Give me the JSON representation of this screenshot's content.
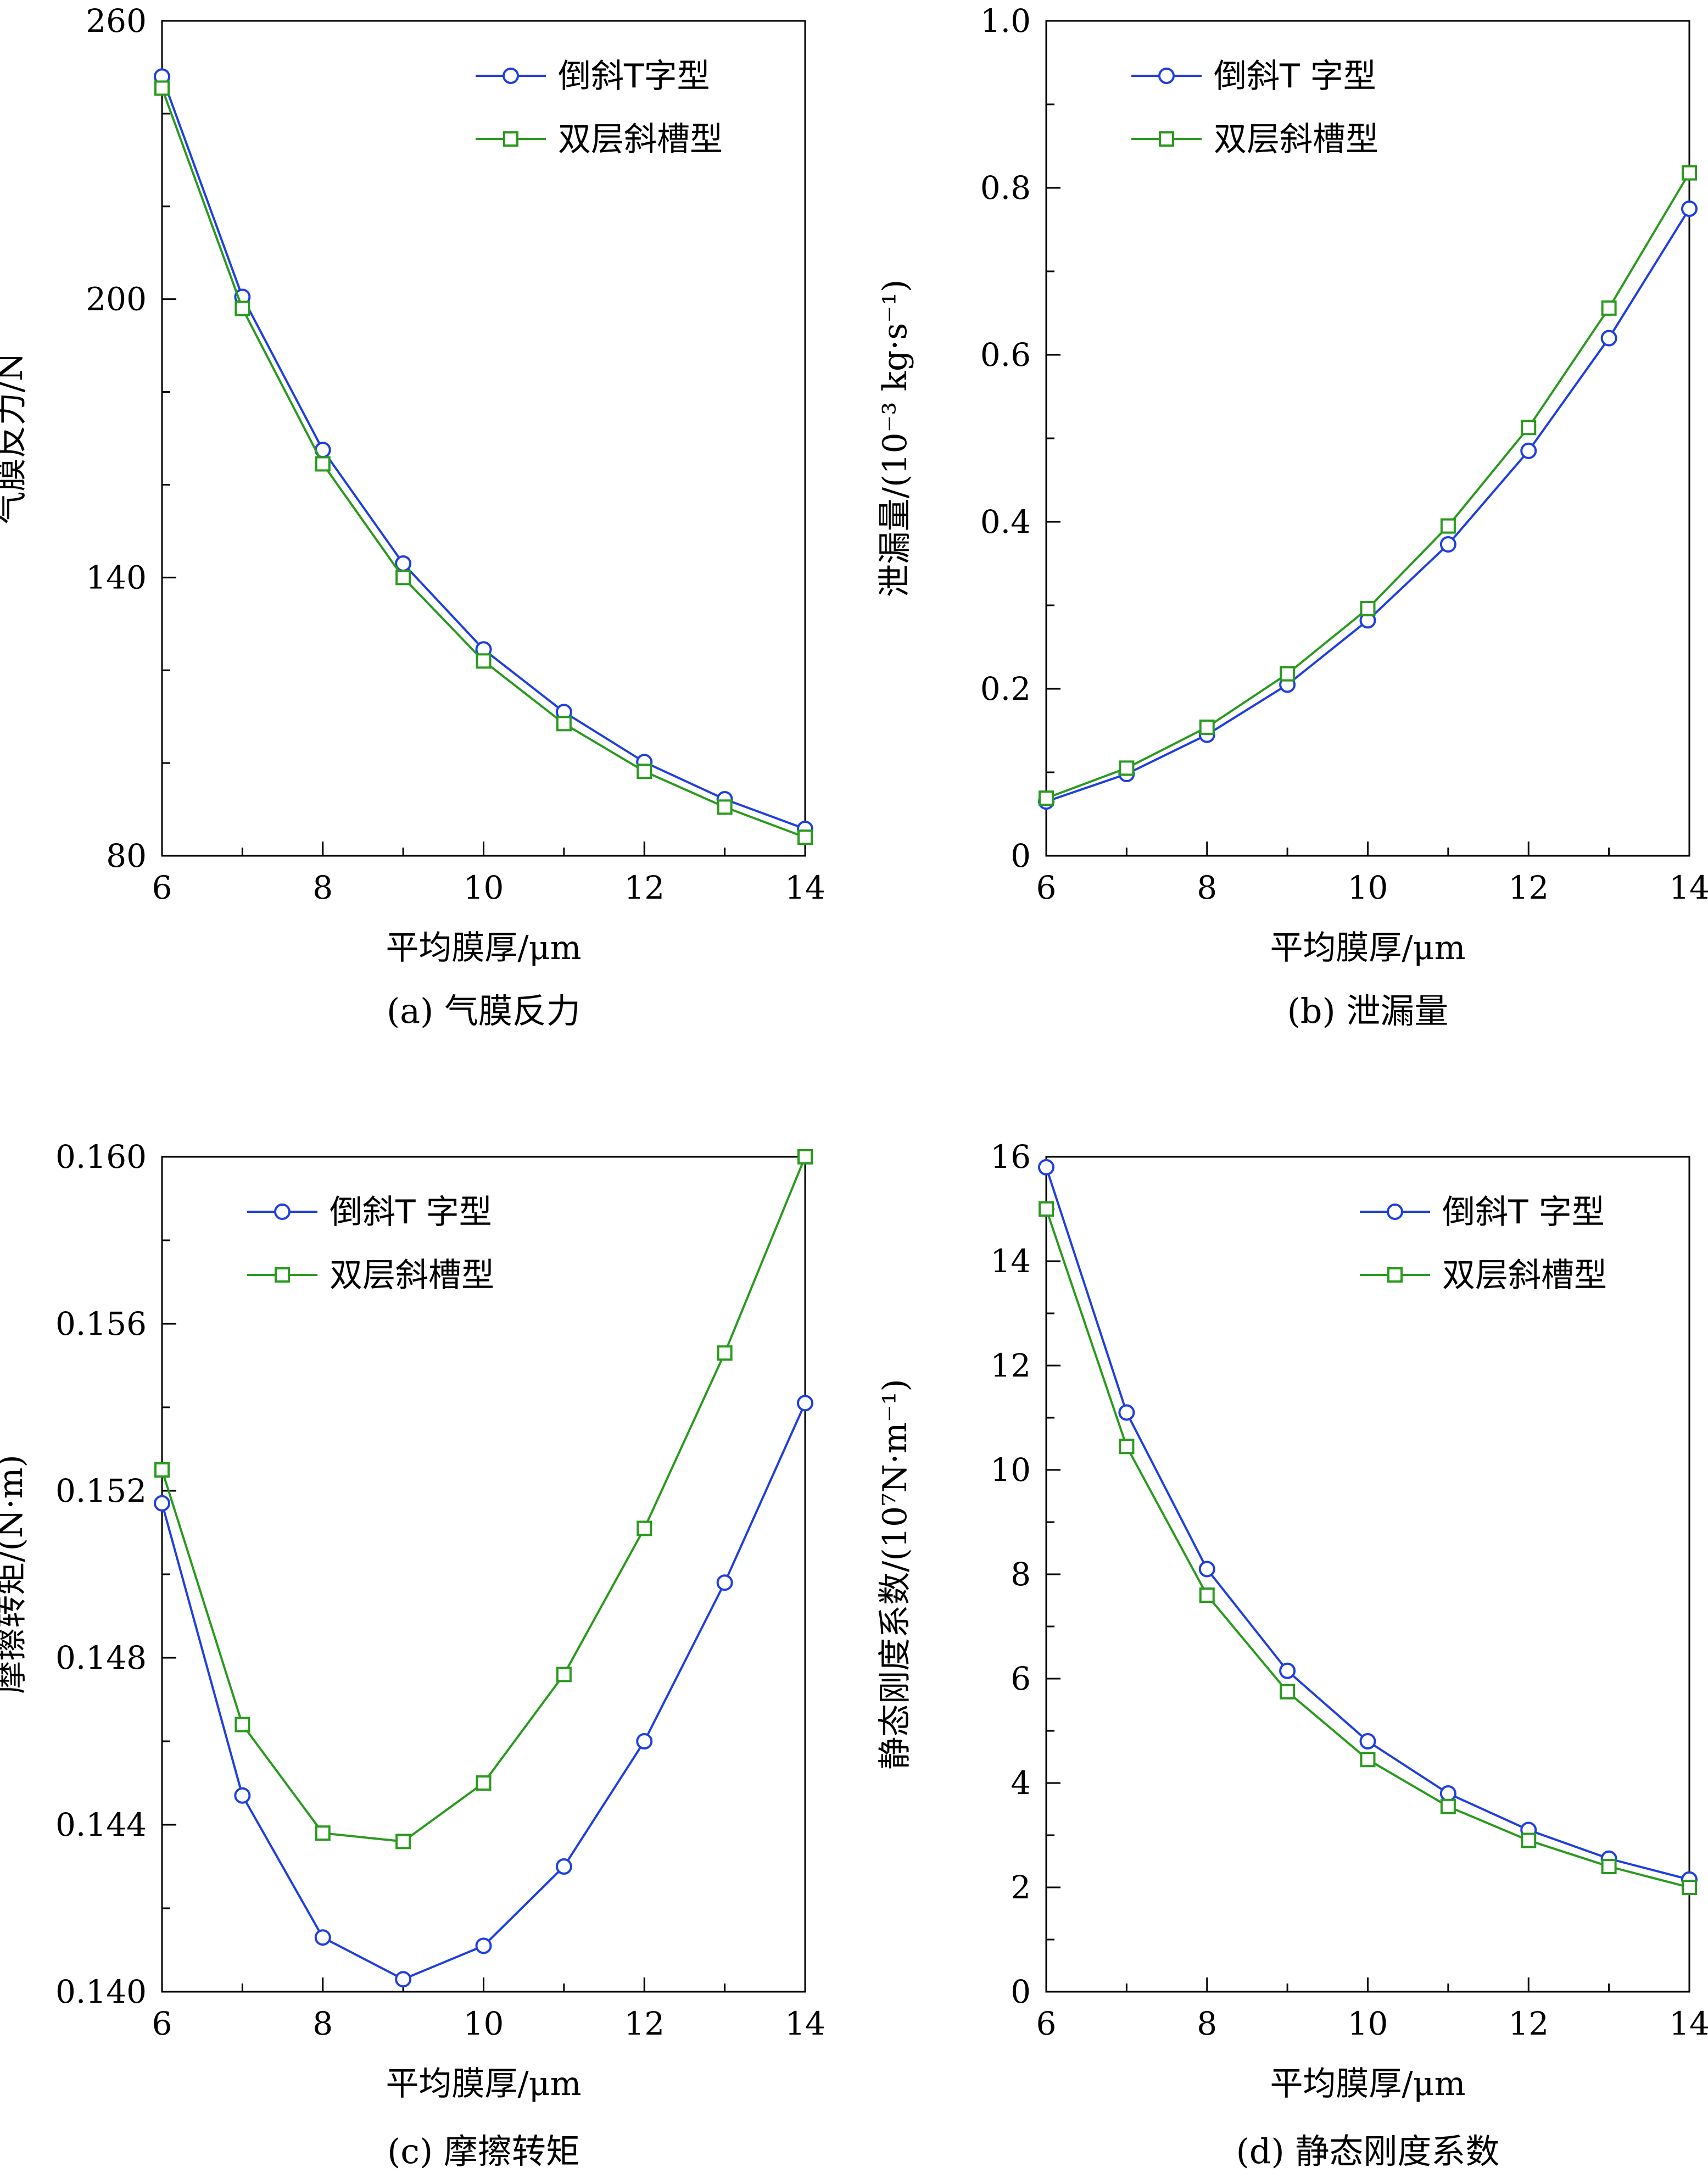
{
  "chart_data": [
    {
      "type": "line",
      "caption": "(a) 气膜反力",
      "xlabel": "平均膜厚/μm",
      "ylabel": "气膜反力/N",
      "xlim": [
        6,
        14
      ],
      "ylim": [
        80,
        260
      ],
      "xticks": [
        6,
        8,
        10,
        12,
        14
      ],
      "xtick_labels": [
        "6",
        "8",
        "10",
        "12",
        "14"
      ],
      "yticks": [
        80,
        140,
        200,
        260
      ],
      "ytick_labels": [
        "80",
        "140",
        "200",
        "260"
      ],
      "yminor": 20,
      "legend_position": "top-right",
      "x": [
        6,
        7,
        8,
        9,
        10,
        11,
        12,
        13,
        14
      ],
      "series": [
        {
          "name": "倒斜T字型",
          "marker": "circle",
          "color": "#1f3fe0",
          "values": [
            248,
            200.5,
            167.5,
            143,
            124.5,
            111,
            100.2,
            92.2,
            85.8
          ]
        },
        {
          "name": "双层斜槽型",
          "marker": "square",
          "color": "#2a9a1e",
          "values": [
            245.5,
            198,
            164.5,
            140,
            122,
            108.5,
            98.2,
            90.5,
            84
          ]
        }
      ]
    },
    {
      "type": "line",
      "caption": "(b) 泄漏量",
      "xlabel": "平均膜厚/μm",
      "ylabel": "泄漏量/(10⁻³ kg·s⁻¹)",
      "xlim": [
        6,
        14
      ],
      "ylim": [
        0,
        1.0
      ],
      "xticks": [
        6,
        8,
        10,
        12,
        14
      ],
      "xtick_labels": [
        "6",
        "8",
        "10",
        "12",
        "14"
      ],
      "yticks": [
        0,
        0.2,
        0.4,
        0.6,
        0.8,
        1.0
      ],
      "ytick_labels": [
        "0",
        "0.2",
        "0.4",
        "0.6",
        "0.8",
        "1.0"
      ],
      "yminor": 0.1,
      "legend_position": "top-left",
      "x": [
        6,
        7,
        8,
        9,
        10,
        11,
        12,
        13,
        14
      ],
      "series": [
        {
          "name": "倒斜T 字型",
          "marker": "circle",
          "color": "#1f3fe0",
          "values": [
            0.065,
            0.098,
            0.145,
            0.205,
            0.282,
            0.373,
            0.485,
            0.62,
            0.775
          ]
        },
        {
          "name": "双层斜槽型",
          "marker": "square",
          "color": "#2a9a1e",
          "values": [
            0.069,
            0.105,
            0.154,
            0.218,
            0.296,
            0.395,
            0.513,
            0.656,
            0.818
          ]
        }
      ]
    },
    {
      "type": "line",
      "caption": "(c) 摩擦转矩",
      "xlabel": "平均膜厚/μm",
      "ylabel": "摩擦转矩/(N·m)",
      "xlim": [
        6,
        14
      ],
      "ylim": [
        0.14,
        0.16
      ],
      "xticks": [
        6,
        8,
        10,
        12,
        14
      ],
      "xtick_labels": [
        "6",
        "8",
        "10",
        "12",
        "14"
      ],
      "yticks": [
        0.14,
        0.144,
        0.148,
        0.152,
        0.156,
        0.16
      ],
      "ytick_labels": [
        "0.140",
        "0.144",
        "0.148",
        "0.152",
        "0.156",
        "0.160"
      ],
      "yminor": 0.002,
      "legend_position": "top-left",
      "x": [
        6,
        7,
        8,
        9,
        10,
        11,
        12,
        13,
        14
      ],
      "series": [
        {
          "name": "倒斜T 字型",
          "marker": "circle",
          "color": "#1f3fe0",
          "values": [
            0.1517,
            0.1447,
            0.1413,
            0.1403,
            0.1411,
            0.143,
            0.146,
            0.1498,
            0.1541
          ]
        },
        {
          "name": "双层斜槽型",
          "marker": "square",
          "color": "#2a9a1e",
          "values": [
            0.1525,
            0.1464,
            0.1438,
            0.1436,
            0.145,
            0.1476,
            0.1511,
            0.1553,
            0.16
          ]
        }
      ]
    },
    {
      "type": "line",
      "caption": "(d) 静态刚度系数",
      "xlabel": "平均膜厚/μm",
      "ylabel": "静态刚度系数/(10⁷N·m⁻¹)",
      "xlim": [
        6,
        14
      ],
      "ylim": [
        0,
        16
      ],
      "xticks": [
        6,
        8,
        10,
        12,
        14
      ],
      "xtick_labels": [
        "6",
        "8",
        "10",
        "12",
        "14"
      ],
      "yticks": [
        0,
        2,
        4,
        6,
        8,
        10,
        12,
        14,
        16
      ],
      "ytick_labels": [
        "0",
        "2",
        "4",
        "6",
        "8",
        "10",
        "12",
        "14",
        "16"
      ],
      "yminor": 1,
      "legend_position": "top-right",
      "x": [
        6,
        7,
        8,
        9,
        10,
        11,
        12,
        13,
        14
      ],
      "series": [
        {
          "name": "倒斜T 字型",
          "marker": "circle",
          "color": "#1f3fe0",
          "values": [
            15.8,
            11.1,
            8.1,
            6.15,
            4.8,
            3.8,
            3.1,
            2.55,
            2.15
          ]
        },
        {
          "name": "双层斜槽型",
          "marker": "square",
          "color": "#2a9a1e",
          "values": [
            15.0,
            10.45,
            7.6,
            5.75,
            4.45,
            3.55,
            2.9,
            2.4,
            2.0
          ]
        }
      ]
    }
  ]
}
